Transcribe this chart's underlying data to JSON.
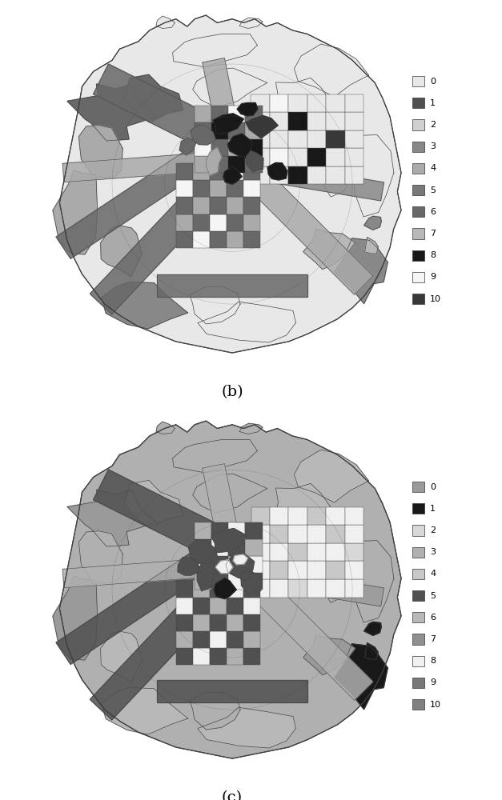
{
  "title_b": "(b)",
  "title_c": "(c)",
  "background": "#ffffff",
  "legend_labels_b": [
    "0",
    "1",
    "2",
    "3",
    "4",
    "5",
    "6",
    "7",
    "8",
    "9",
    "10"
  ],
  "legend_colors_b": [
    "#e8e8e8",
    "#505050",
    "#d0d0d0",
    "#888888",
    "#aaaaaa",
    "#787878",
    "#686868",
    "#b8b8b8",
    "#181818",
    "#f5f5f5",
    "#383838"
  ],
  "legend_labels_c": [
    "0",
    "1",
    "2",
    "3",
    "4",
    "5",
    "6",
    "7",
    "8",
    "9",
    "10"
  ],
  "legend_colors_c": [
    "#9a9a9a",
    "#181818",
    "#d8d8d8",
    "#b0b0b0",
    "#c8c8c8",
    "#505050",
    "#b8b8b8",
    "#909090",
    "#f0f0f0",
    "#787878",
    "#808080"
  ],
  "fig_width": 6.27,
  "fig_height": 10.0,
  "outer_color_b": "#e8e8e8",
  "outer_color_c": "#b0b0b0",
  "edge_color": "#444444",
  "edge_lw": 0.6
}
